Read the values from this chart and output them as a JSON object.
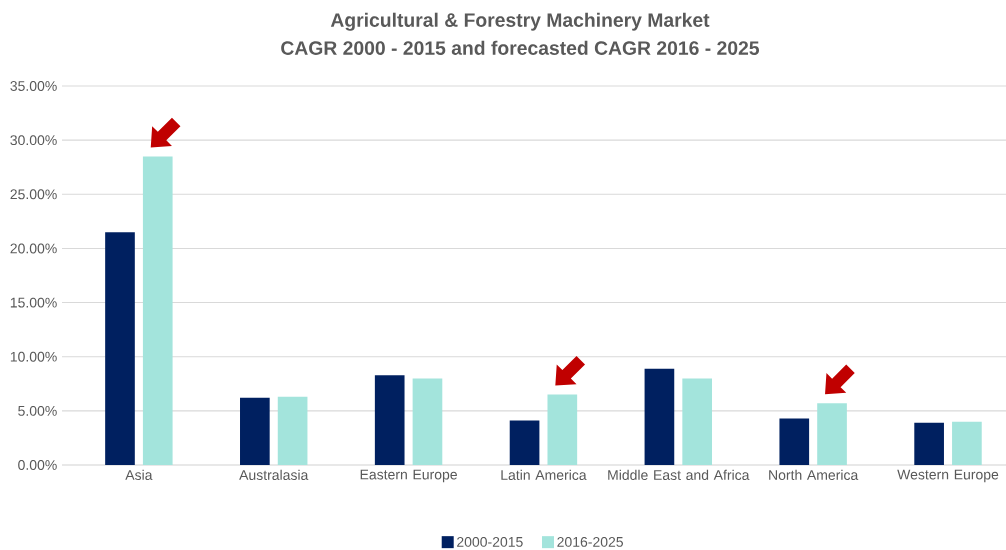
{
  "chart_data": {
    "type": "bar",
    "title": "Agricultural & Forestry Machinery Market",
    "subtitle": "CAGR 2000 - 2015 and forecasted CAGR 2016 - 2025",
    "categories": [
      "Asia",
      "Australasia",
      "Eastern Europe",
      "Latin America",
      "Middle East and Africa",
      "North America",
      "Western Europe"
    ],
    "series": [
      {
        "name": "2000-2015",
        "color": "#002060",
        "values": [
          21.5,
          6.2,
          8.3,
          4.1,
          8.9,
          4.3,
          3.9
        ]
      },
      {
        "name": "2016-2025",
        "color": "#a3e4dc",
        "values": [
          28.5,
          6.3,
          8.0,
          6.5,
          8.0,
          5.7,
          4.0
        ]
      }
    ],
    "ylim": [
      0,
      35
    ],
    "yticks": [
      {
        "value": 0,
        "label": "0.00%"
      },
      {
        "value": 5,
        "label": "5.00%"
      },
      {
        "value": 10,
        "label": "10.00%"
      },
      {
        "value": 15,
        "label": "15.00%"
      },
      {
        "value": 20,
        "label": "20.00%"
      },
      {
        "value": 25,
        "label": "25.00%"
      },
      {
        "value": 30,
        "label": "30.00%"
      },
      {
        "value": 35,
        "label": "35.00%"
      }
    ],
    "annotations": [
      {
        "x": "Asia"
      },
      {
        "x": "Latin America"
      },
      {
        "x": "North America"
      }
    ],
    "grid": "y",
    "legend": "bottom"
  }
}
